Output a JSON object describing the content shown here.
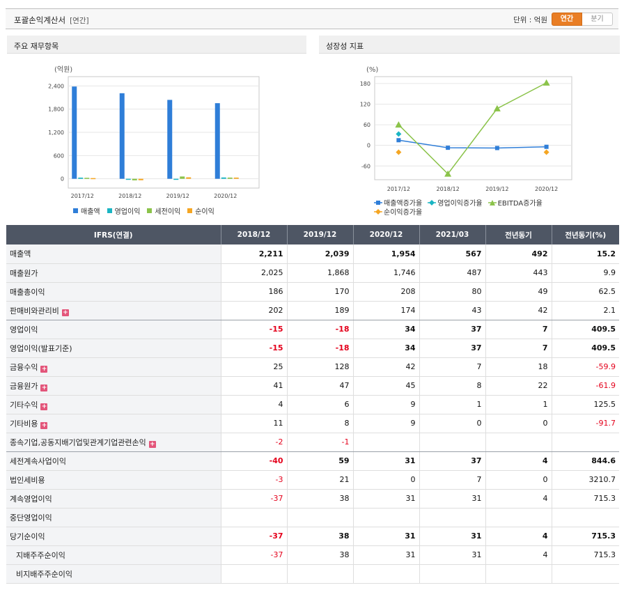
{
  "header": {
    "title": "포괄손익계산서",
    "subtitle": "[연간]",
    "unit_label": "단위 : 억원",
    "toggle": {
      "annual": "연간",
      "quarterly": "분기"
    }
  },
  "panels": {
    "left_title": "주요 재무항목",
    "right_title": "성장성 지표"
  },
  "colors": {
    "sales": "#2f7ed8",
    "op_income": "#1ab5c3",
    "pretax": "#8bc34a",
    "net_income": "#f5a623",
    "ebitda": "#8bc34a",
    "header_bg": "#4e5664",
    "negative": "#e4001b",
    "accent": "#e97e25"
  },
  "chart_data": [
    {
      "type": "bar",
      "ylabel": "(억원)",
      "ylim": [
        -240,
        2640
      ],
      "yticks": [
        0,
        600,
        1200,
        1800,
        2400
      ],
      "ytick_labels": [
        "0",
        "600",
        "1,200",
        "1,800",
        "2,400"
      ],
      "categories": [
        "2017/12",
        "2018/12",
        "2019/12",
        "2020/12"
      ],
      "series": [
        {
          "name": "매출액",
          "values": [
            2384,
            2211,
            2039,
            1954
          ]
        },
        {
          "name": "영업이익",
          "values": [
            30,
            -15,
            -18,
            34
          ]
        },
        {
          "name": "세전이익",
          "values": [
            25,
            -40,
            59,
            31
          ]
        },
        {
          "name": "순이익",
          "values": [
            18,
            -37,
            38,
            31
          ]
        }
      ],
      "legend_position": "bottom",
      "grid": true
    },
    {
      "type": "line",
      "ylabel": "(%)",
      "ylim": [
        -100,
        200
      ],
      "yticks": [
        -60,
        0,
        60,
        120,
        180
      ],
      "ytick_labels": [
        "-60",
        "0",
        "60",
        "120",
        "180"
      ],
      "categories": [
        "2017/12",
        "2018/12",
        "2019/12",
        "2020/12"
      ],
      "series": [
        {
          "name": "매출액증가율",
          "values": [
            15,
            -7,
            -7.8,
            -4.2
          ]
        },
        {
          "name": "영업이익증가율",
          "values": [
            33,
            null,
            null,
            null
          ]
        },
        {
          "name": "EBITDA증가율",
          "values": [
            60,
            -83,
            107,
            182
          ]
        },
        {
          "name": "순이익증가율",
          "values": [
            -20,
            null,
            null,
            -20
          ]
        }
      ],
      "legend_position": "bottom",
      "grid": true
    }
  ],
  "table": {
    "headers": [
      "IFRS(연결)",
      "2018/12",
      "2019/12",
      "2020/12",
      "2021/03",
      "전년동기",
      "전년동기(%)"
    ],
    "rows": [
      {
        "label": "매출액",
        "bold": true,
        "values": [
          "2,211",
          "2,039",
          "1,954",
          "567",
          "492",
          "15.2"
        ]
      },
      {
        "label": "매출원가",
        "values": [
          "2,025",
          "1,868",
          "1,746",
          "487",
          "443",
          "9.9"
        ]
      },
      {
        "label": "매출총이익",
        "values": [
          "186",
          "170",
          "208",
          "80",
          "49",
          "62.5"
        ]
      },
      {
        "label": "판매비와관리비",
        "expand": true,
        "values": [
          "202",
          "189",
          "174",
          "43",
          "42",
          "2.1"
        ],
        "sep": true
      },
      {
        "label": "영업이익",
        "bold": true,
        "values": [
          "-15",
          "-18",
          "34",
          "37",
          "7",
          "409.5"
        ]
      },
      {
        "label": "영업이익(발표기준)",
        "bold": true,
        "values": [
          "-15",
          "-18",
          "34",
          "37",
          "7",
          "409.5"
        ]
      },
      {
        "label": "금융수익",
        "expand": true,
        "values": [
          "25",
          "128",
          "42",
          "7",
          "18",
          "-59.9"
        ]
      },
      {
        "label": "금융원가",
        "expand": true,
        "values": [
          "41",
          "47",
          "45",
          "8",
          "22",
          "-61.9"
        ]
      },
      {
        "label": "기타수익",
        "expand": true,
        "values": [
          "4",
          "6",
          "9",
          "1",
          "1",
          "125.5"
        ]
      },
      {
        "label": "기타비용",
        "expand": true,
        "values": [
          "11",
          "8",
          "9",
          "0",
          "0",
          "-91.7"
        ]
      },
      {
        "label": "종속기업,공동지배기업및관계기업관련손익",
        "expand": true,
        "values": [
          "-2",
          "-1",
          "",
          "",
          "",
          ""
        ],
        "sep": true
      },
      {
        "label": "세전계속사업이익",
        "bold": true,
        "values": [
          "-40",
          "59",
          "31",
          "37",
          "4",
          "844.6"
        ]
      },
      {
        "label": "법인세비용",
        "values": [
          "-3",
          "21",
          "0",
          "7",
          "0",
          "3210.7"
        ]
      },
      {
        "label": "계속영업이익",
        "values": [
          "-37",
          "38",
          "31",
          "31",
          "4",
          "715.3"
        ]
      },
      {
        "label": "중단영업이익",
        "values": [
          "",
          "",
          "",
          "",
          "",
          ""
        ]
      },
      {
        "label": "당기순이익",
        "bold": true,
        "values": [
          "-37",
          "38",
          "31",
          "31",
          "4",
          "715.3"
        ]
      },
      {
        "label": "지배주주순이익",
        "indent": true,
        "values": [
          "-37",
          "38",
          "31",
          "31",
          "4",
          "715.3"
        ]
      },
      {
        "label": "비지배주주순이익",
        "indent": true,
        "values": [
          "",
          "",
          "",
          "",
          "",
          ""
        ]
      }
    ]
  }
}
